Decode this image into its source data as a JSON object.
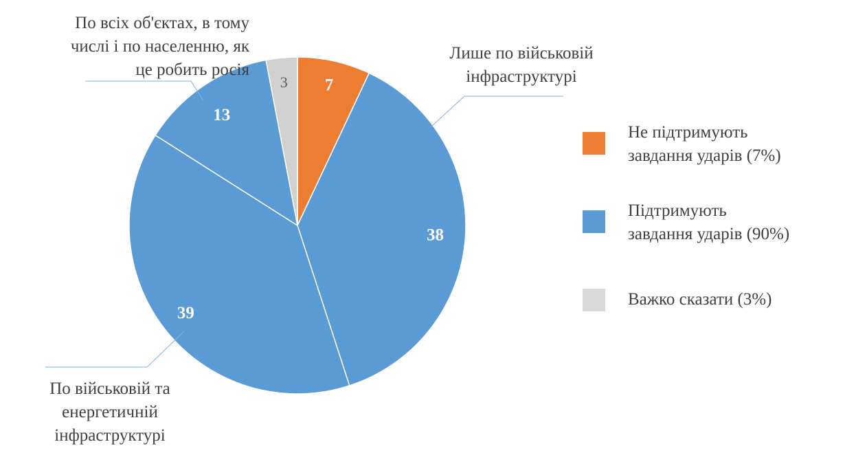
{
  "chart_data": {
    "type": "pie",
    "slices": [
      {
        "value": 7,
        "label": "7",
        "color": "#ED7D31",
        "label_color": "#ffffff",
        "category": ""
      },
      {
        "value": 38,
        "label": "38",
        "color": "#5B9BD5",
        "label_color": "#ffffff",
        "category": "Лише по військовій інфраструктурі"
      },
      {
        "value": 39,
        "label": "39",
        "color": "#5B9BD5",
        "label_color": "#ffffff",
        "category": "По військовій та енергетичній інфраструктурі"
      },
      {
        "value": 13,
        "label": "13",
        "color": "#5B9BD5",
        "label_color": "#ffffff",
        "category": "По всіх об'єктах, в тому числі і по населенню, як це робить росія"
      },
      {
        "value": 3,
        "label": "3",
        "color": "#D0D0D0",
        "label_color": "#595959",
        "category": ""
      }
    ],
    "start_angle": "12 o'clock",
    "direction": "clockwise",
    "legend_position": "right",
    "callouts": {
      "military": {
        "lines": [
          "Лише по військовій",
          "інфраструктурі"
        ]
      },
      "military_energy": {
        "lines": [
          "По військовій та",
          "енергетичній",
          "інфраструктурі"
        ]
      },
      "all_objects": {
        "lines": [
          "По всіх об'єктах, в тому",
          "числі і по населенню, як",
          "це робить росія"
        ]
      }
    },
    "legend": [
      {
        "lines": [
          "Не підтримують",
          "завдання ударів (7%)"
        ],
        "color": "#ED7D31"
      },
      {
        "lines": [
          "Підтримують",
          "завдання ударів (90%)"
        ],
        "color": "#5B9BD5"
      },
      {
        "lines": [
          "Важко сказати (3%)"
        ],
        "color": "#D9D9D9"
      }
    ]
  }
}
